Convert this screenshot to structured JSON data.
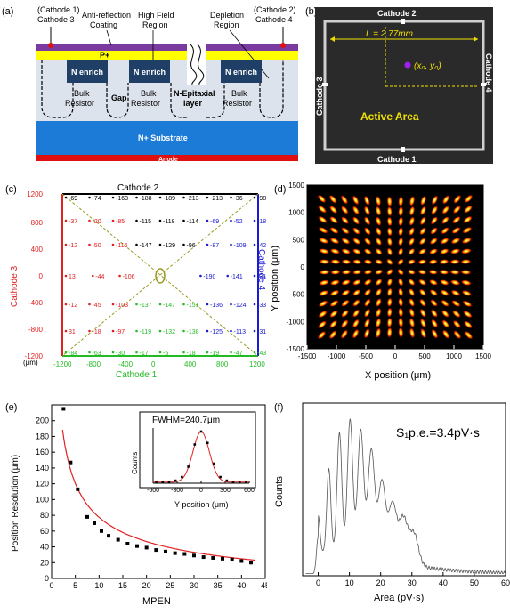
{
  "panel_a": {
    "label": "(a)",
    "cathode1": "(Cathode 1)",
    "cathode3": "Cathode 3",
    "anti_reflection": "Anti-reflection",
    "coating": "Coating",
    "high_field": "High Field",
    "region_hf": "Region",
    "depletion": "Depletion",
    "region_dep": "Region",
    "cathode2": "(Cathode 2)",
    "cathode4": "Cathode 4",
    "p_plus": "P+",
    "n_enrich": "N enrich",
    "bulk": "Bulk",
    "resistor": "Resistor",
    "gap": "Gap",
    "n_epitaxial": "N-Epitaxial",
    "layer": "layer",
    "n_substrate": "N+ Substrate",
    "anode": "Anode",
    "colors": {
      "purple": "#7a3aa0",
      "yellow": "#ffff00",
      "navy": "#1f3f66",
      "bulk": "#d6dde8",
      "blue": "#1b7bd6",
      "red": "#e01010"
    }
  },
  "panel_b": {
    "label": "(b)",
    "cathode_top": "Cathode 2",
    "cathode_bottom": "Cathode 1",
    "cathode_left": "Cathode 3",
    "cathode_right": "Cathode 4",
    "length": "L = 2.77mm",
    "point": "(x₀, y₀)",
    "active_area": "Active  Area",
    "colors": {
      "bg": "#2a2a2a",
      "frame": "#cfcfcf",
      "text": "#f0e000",
      "dot": "#a020f0"
    }
  },
  "panel_c": {
    "label": "(c)",
    "cathode_top": "Cathode 2",
    "cathode_bottom": "Cathode 1",
    "cathode_left": "Cathode 3",
    "cathode_right": "Cathode 4",
    "unit": "(μm)",
    "axis_ticks": [
      "-1200",
      "-800",
      "-400",
      "0",
      "400",
      "800",
      "1200"
    ],
    "grid_rows": [
      [
        "-69",
        "-74",
        "-163",
        "-188",
        "-189",
        "-213",
        "-213",
        "-36",
        "-98"
      ],
      [
        "-37",
        "-20",
        "-85",
        "-115",
        "-118",
        "-114",
        "-69",
        "-52",
        "-18"
      ],
      [
        "-12",
        "-50",
        "-116",
        "-147",
        "-129",
        "-96",
        "-87",
        "-109",
        "-42"
      ],
      [
        "13",
        "-44",
        "-106",
        "",
        "",
        "-190",
        "-141",
        "-31"
      ],
      [
        "-12",
        "-45",
        "-103",
        "-137",
        "-147",
        "-151",
        "-136",
        "-124",
        "-33"
      ],
      [
        "31",
        "-18",
        "-97",
        "-119",
        "-132",
        "-138",
        "-125",
        "-113",
        "-31"
      ],
      [
        "-84",
        "-63",
        "-30",
        "-17",
        "-5",
        "-18",
        "-19",
        "-47",
        "-43"
      ]
    ],
    "colors": {
      "black": "#000000",
      "red": "#e02020",
      "blue": "#1a1ad0",
      "green": "#22bb22",
      "diag": "#9a9a20"
    }
  },
  "panel_d": {
    "label": "(d)",
    "xlabel": "X position (μm)",
    "ylabel": "Y position (μm)",
    "xticks": [
      "-1500",
      "-1000",
      "-500",
      "0",
      "500",
      "1000",
      "1500"
    ],
    "yticks": [
      "1500",
      "1000",
      "500",
      "0",
      "-500",
      "-1000",
      "-1500"
    ]
  },
  "panel_e": {
    "label": "(e)",
    "xlabel": "MPEN",
    "ylabel": "Position Resolution (μm)",
    "xticks": [
      "0",
      "5",
      "10",
      "15",
      "20",
      "25",
      "30",
      "35",
      "40",
      "45"
    ],
    "yticks": [
      "0",
      "20",
      "40",
      "60",
      "80",
      "100",
      "120",
      "140",
      "160",
      "180",
      "200"
    ],
    "inset": {
      "title": "FWHM=240.7μm",
      "xlabel": "Y position (μm)",
      "ylabel": "Counts",
      "xticks": [
        "-600",
        "-300",
        "0",
        "300",
        "600"
      ]
    }
  },
  "panel_f": {
    "label": "(f)",
    "annotation": "S₁p.e.=3.4pV·s",
    "xlabel": "Area (pV·s)",
    "ylabel": "Counts",
    "xticks": [
      "0",
      "10",
      "20",
      "30",
      "40",
      "50",
      "60"
    ]
  },
  "chart_data": [
    {
      "type": "scatter",
      "panel": "(e)",
      "title": "",
      "xlabel": "MPEN",
      "ylabel": "Position Resolution (μm)",
      "xlim": [
        0,
        45
      ],
      "ylim": [
        0,
        220
      ],
      "x": [
        2.5,
        4,
        5.5,
        7.5,
        9,
        10.5,
        12,
        14,
        16,
        18,
        20,
        22,
        24,
        26,
        28,
        30,
        32,
        34,
        36,
        38,
        40,
        42
      ],
      "y": [
        215,
        147,
        113,
        78,
        70,
        60,
        54,
        49,
        44,
        41,
        39,
        36,
        34,
        32,
        31,
        29,
        27,
        26,
        25,
        24,
        22,
        20
      ]
    },
    {
      "type": "line",
      "panel": "(e) inset",
      "title": "FWHM=240.7μm",
      "xlabel": "Y position (μm)",
      "ylabel": "Counts",
      "xlim": [
        -600,
        600
      ],
      "x": [
        -560,
        -480,
        -400,
        -320,
        -240,
        -160,
        -80,
        0,
        80,
        160,
        240,
        320,
        400,
        480,
        560
      ],
      "y": [
        0.02,
        0.02,
        0.03,
        0.05,
        0.12,
        0.32,
        0.75,
        1.0,
        0.78,
        0.38,
        0.12,
        0.05,
        0.02,
        0.02,
        0.02
      ]
    },
    {
      "type": "line",
      "panel": "(f)",
      "title": "",
      "xlabel": "Area (pV·s)",
      "ylabel": "Counts",
      "xlim": [
        -5,
        60
      ],
      "peaks_x": [
        0,
        3.4,
        6.8,
        10.2,
        13.6,
        17.0,
        20.4,
        23.8,
        27.2,
        30.6
      ],
      "peaks_rel_height": [
        0.28,
        0.63,
        0.9,
        1.0,
        0.92,
        0.77,
        0.56,
        0.42,
        0.33,
        0.24
      ]
    }
  ]
}
